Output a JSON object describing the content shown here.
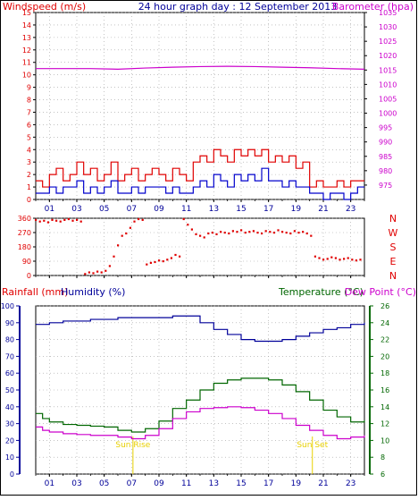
{
  "title": "24 hour graph day : 12 September 2013",
  "colors": {
    "wind": "#e00000",
    "gust": "#0000cc",
    "baro": "#cc00cc",
    "humidity": "#000099",
    "temperature": "#006600",
    "dewpoint": "#cc00cc",
    "grid": "#a0a0a0",
    "sun": "#e8d000"
  },
  "x_ticks": [
    "01",
    "03",
    "05",
    "07",
    "09",
    "11",
    "13",
    "15",
    "17",
    "19",
    "21",
    "23"
  ],
  "chart_data": [
    {
      "type": "line",
      "name": "wind-barometer",
      "left_label": "Windspeed (m/s)",
      "right_label": "Barometer (hpa)",
      "ylim_left": [
        0,
        15
      ],
      "y_ticks_left": [
        0,
        1,
        2,
        3,
        4,
        5,
        6,
        7,
        8,
        9,
        10,
        11,
        12,
        13,
        14,
        15
      ],
      "ylim_right": [
        970,
        1035
      ],
      "y_ticks_right": [
        975,
        980,
        985,
        990,
        995,
        1000,
        1005,
        1010,
        1015,
        1020,
        1025,
        1030,
        1035
      ],
      "series": [
        {
          "key": "wind",
          "axis": "left",
          "style": "step",
          "x": [
            0,
            0.5,
            1,
            1.5,
            2,
            2.5,
            3,
            3.5,
            4,
            4.5,
            5,
            5.5,
            6,
            6.5,
            7,
            7.5,
            8,
            8.5,
            9,
            9.5,
            10,
            10.5,
            11,
            11.5,
            12,
            12.5,
            13,
            13.5,
            14,
            14.5,
            15,
            15.5,
            16,
            16.5,
            17,
            17.5,
            18,
            18.5,
            19,
            19.5,
            20,
            20.5,
            21,
            21.5,
            22,
            22.5,
            23,
            23.5,
            24
          ],
          "y": [
            1.5,
            1,
            2,
            2.5,
            1.5,
            2,
            3,
            2,
            2.5,
            1.5,
            2,
            3,
            1.5,
            2,
            2.5,
            1.5,
            2,
            2.5,
            2,
            1.5,
            2.5,
            2,
            1.5,
            3,
            3.5,
            3,
            4,
            3.5,
            3,
            4,
            3.5,
            4,
            3.5,
            4,
            3,
            3.5,
            3,
            3.5,
            2.5,
            3,
            1,
            1.5,
            1,
            1,
            1.5,
            1,
            1.5,
            1.5,
            1.5
          ]
        },
        {
          "key": "gust",
          "axis": "left",
          "style": "step",
          "x": [
            0,
            0.5,
            1,
            1.5,
            2,
            2.5,
            3,
            3.5,
            4,
            4.5,
            5,
            5.5,
            6,
            6.5,
            7,
            7.5,
            8,
            8.5,
            9,
            9.5,
            10,
            10.5,
            11,
            11.5,
            12,
            12.5,
            13,
            13.5,
            14,
            14.5,
            15,
            15.5,
            16,
            16.5,
            17,
            17.5,
            18,
            18.5,
            19,
            19.5,
            20,
            20.5,
            21,
            21.5,
            22,
            22.5,
            23,
            23.5,
            24
          ],
          "y": [
            0.5,
            0.5,
            1,
            0.5,
            1,
            1,
            1.5,
            0.5,
            1,
            0.5,
            1,
            1.5,
            0.5,
            0.5,
            1,
            0.5,
            1,
            1,
            1,
            0.5,
            1,
            0.5,
            0.5,
            1,
            1.5,
            1,
            2,
            1.5,
            1,
            2,
            1.5,
            2,
            1.5,
            2.5,
            1.5,
            1.5,
            1,
            1.5,
            1,
            1,
            0.5,
            0.5,
            0,
            0.5,
            0.5,
            0,
            0.5,
            1,
            1
          ]
        },
        {
          "key": "baro",
          "axis": "right",
          "style": "line",
          "x": [
            0,
            2,
            4,
            6,
            8,
            10,
            12,
            14,
            16,
            18,
            20,
            22,
            24
          ],
          "y": [
            1015.5,
            1015.5,
            1015.5,
            1015.3,
            1015.7,
            1016,
            1016.2,
            1016.3,
            1016.2,
            1016,
            1015.8,
            1015.5,
            1015.3
          ]
        }
      ]
    },
    {
      "type": "scatter",
      "name": "wind-direction",
      "ylim": [
        0,
        360
      ],
      "y_ticks": [
        0,
        90,
        180,
        270,
        360
      ],
      "right_labels": [
        "N",
        "W",
        "S",
        "E",
        "N"
      ],
      "series": [
        {
          "key": "direction",
          "x": [
            0,
            0.3,
            0.6,
            0.9,
            1.2,
            1.5,
            1.8,
            2.1,
            2.4,
            2.7,
            3,
            3.3,
            3.6,
            3.9,
            4.2,
            4.5,
            4.8,
            5.1,
            5.4,
            5.7,
            6,
            6.3,
            6.6,
            6.9,
            7.2,
            7.5,
            7.8,
            8.1,
            8.4,
            8.7,
            9,
            9.3,
            9.6,
            9.9,
            10.2,
            10.5,
            10.8,
            11.1,
            11.4,
            11.7,
            12,
            12.3,
            12.6,
            12.9,
            13.2,
            13.5,
            13.8,
            14.1,
            14.4,
            14.7,
            15,
            15.3,
            15.6,
            15.9,
            16.2,
            16.5,
            16.8,
            17.1,
            17.4,
            17.7,
            18,
            18.3,
            18.6,
            18.9,
            19.2,
            19.5,
            19.8,
            20.1,
            20.4,
            20.7,
            21,
            21.3,
            21.6,
            21.9,
            22.2,
            22.5,
            22.8,
            23.1,
            23.4,
            23.7
          ],
          "y": [
            350,
            340,
            345,
            335,
            350,
            345,
            340,
            350,
            355,
            345,
            350,
            340,
            10,
            20,
            15,
            25,
            20,
            30,
            60,
            120,
            190,
            250,
            265,
            300,
            340,
            355,
            350,
            70,
            80,
            85,
            95,
            90,
            100,
            110,
            130,
            120,
            355,
            320,
            290,
            260,
            250,
            240,
            265,
            270,
            260,
            275,
            270,
            265,
            280,
            275,
            285,
            270,
            275,
            280,
            270,
            265,
            280,
            275,
            270,
            285,
            275,
            270,
            265,
            280,
            270,
            275,
            265,
            250,
            120,
            110,
            100,
            105,
            115,
            110,
            100,
            105,
            110,
            100,
            95,
            100
          ]
        }
      ]
    },
    {
      "type": "line",
      "name": "humidity-temperature",
      "left_labels": [
        "Rainfall (mm)",
        "Humidity (%)"
      ],
      "right_labels": [
        "Temperature (°C)",
        "Dew Point (°C)"
      ],
      "ylim_left": [
        0,
        100
      ],
      "y_ticks_left": [
        0,
        10,
        20,
        30,
        40,
        50,
        60,
        70,
        80,
        90,
        100
      ],
      "ylim_right": [
        6,
        26
      ],
      "y_ticks_right": [
        6,
        8,
        10,
        12,
        14,
        16,
        18,
        20,
        22,
        24,
        26
      ],
      "annotations": [
        {
          "label": "Sun Rise",
          "x": 7.1
        },
        {
          "label": "Sun Set",
          "x": 20.2
        }
      ],
      "series": [
        {
          "key": "humidity",
          "axis": "left",
          "x": [
            0,
            1,
            2,
            3,
            4,
            5,
            6,
            7,
            8,
            9,
            10,
            11,
            12,
            13,
            14,
            15,
            16,
            17,
            18,
            19,
            20,
            21,
            22,
            23,
            24
          ],
          "y": [
            89,
            90,
            91,
            91,
            92,
            92,
            93,
            93,
            93,
            93,
            94,
            94,
            90,
            86,
            83,
            80,
            79,
            79,
            80,
            82,
            84,
            86,
            87,
            89,
            90
          ]
        },
        {
          "key": "temperature",
          "axis": "right",
          "x": [
            0,
            0.5,
            1,
            2,
            3,
            4,
            5,
            6,
            7,
            8,
            9,
            10,
            11,
            12,
            13,
            14,
            15,
            16,
            17,
            18,
            19,
            20,
            21,
            22,
            23,
            24
          ],
          "y": [
            13.2,
            12.6,
            12.2,
            11.9,
            11.8,
            11.7,
            11.6,
            11.2,
            11,
            11.4,
            12.3,
            13.8,
            14.8,
            16,
            16.8,
            17.2,
            17.4,
            17.4,
            17.2,
            16.6,
            15.8,
            14.8,
            13.6,
            12.8,
            12.2,
            12.4
          ]
        },
        {
          "key": "dewpoint",
          "axis": "right",
          "x": [
            0,
            0.5,
            1,
            2,
            3,
            4,
            5,
            6,
            7,
            8,
            9,
            10,
            11,
            12,
            13,
            14,
            15,
            16,
            17,
            18,
            19,
            20,
            21,
            22,
            23,
            24
          ],
          "y": [
            11.6,
            11.2,
            11,
            10.8,
            10.7,
            10.6,
            10.6,
            10.4,
            10.2,
            10.6,
            11.4,
            12.6,
            13.4,
            13.8,
            13.9,
            14,
            13.9,
            13.6,
            13.2,
            12.6,
            11.8,
            11.2,
            10.6,
            10.2,
            10.4,
            10.6
          ]
        }
      ]
    }
  ]
}
